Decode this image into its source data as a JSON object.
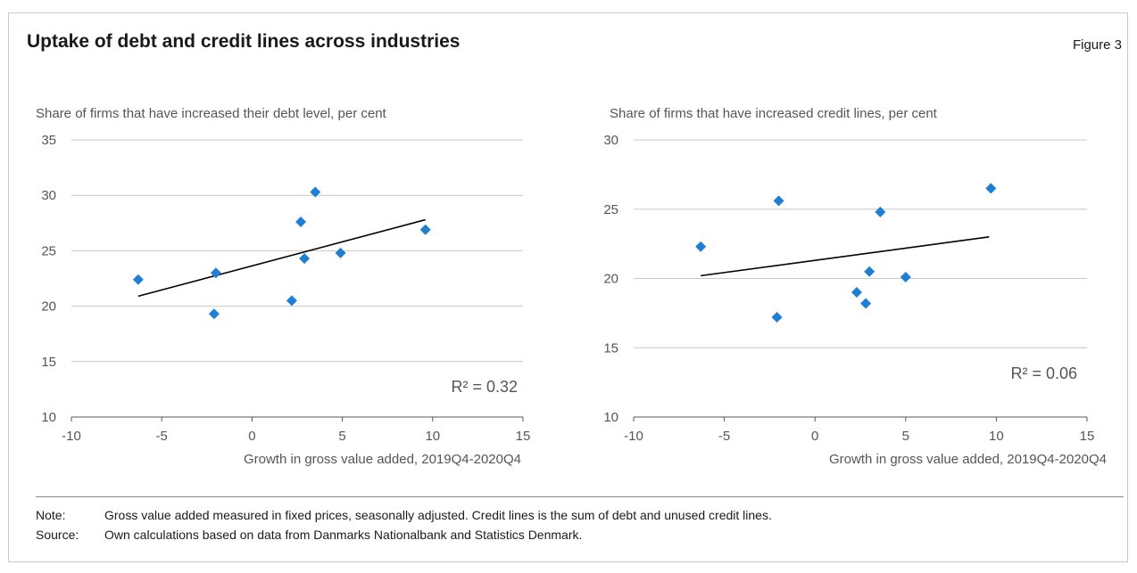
{
  "figure": {
    "title": "Uptake of debt and credit lines across industries",
    "label": "Figure 3"
  },
  "colors": {
    "marker": "#1f7fd4",
    "trendline": "#000000",
    "grid": "#c8c8c8",
    "axis": "#555555",
    "text": "#555555"
  },
  "chart_data": [
    {
      "type": "scatter",
      "title": "",
      "ylabel": "Share of firms that have increased their debt level, per cent",
      "xlabel": "Growth in gross value added, 2019Q4-2020Q4",
      "xlim": [
        -10,
        15
      ],
      "ylim": [
        10,
        35
      ],
      "xticks": [
        -10,
        -5,
        0,
        5,
        10,
        15
      ],
      "yticks": [
        10,
        15,
        20,
        25,
        30,
        35
      ],
      "grid": "horizontal",
      "marker": "diamond",
      "points": [
        {
          "x": -6.3,
          "y": 22.4
        },
        {
          "x": -2.1,
          "y": 19.3
        },
        {
          "x": -2.0,
          "y": 23.0
        },
        {
          "x": 2.2,
          "y": 20.5
        },
        {
          "x": 2.7,
          "y": 27.6
        },
        {
          "x": 2.9,
          "y": 24.3
        },
        {
          "x": 3.5,
          "y": 30.3
        },
        {
          "x": 4.9,
          "y": 24.8
        },
        {
          "x": 9.6,
          "y": 26.9
        }
      ],
      "trendline": {
        "x": [
          -6.3,
          9.6
        ],
        "y": [
          20.9,
          27.8
        ]
      },
      "annotation": "R² = 0.32"
    },
    {
      "type": "scatter",
      "title": "",
      "ylabel": "Share of firms that have increased credit lines, per cent",
      "xlabel": "Growth in gross value added, 2019Q4-2020Q4",
      "xlim": [
        -10,
        15
      ],
      "ylim": [
        10,
        30
      ],
      "xticks": [
        -10,
        -5,
        0,
        5,
        10,
        15
      ],
      "yticks": [
        10,
        15,
        20,
        25,
        30
      ],
      "grid": "horizontal",
      "marker": "diamond",
      "points": [
        {
          "x": -6.3,
          "y": 22.3
        },
        {
          "x": -2.1,
          "y": 17.2
        },
        {
          "x": -2.0,
          "y": 25.6
        },
        {
          "x": 2.3,
          "y": 19.0
        },
        {
          "x": 2.8,
          "y": 18.2
        },
        {
          "x": 3.0,
          "y": 20.5
        },
        {
          "x": 3.6,
          "y": 24.8
        },
        {
          "x": 5.0,
          "y": 20.1
        },
        {
          "x": 9.7,
          "y": 26.5
        }
      ],
      "trendline": {
        "x": [
          -6.3,
          9.6
        ],
        "y": [
          20.2,
          23.0
        ]
      },
      "annotation": "R² = 0.06"
    }
  ],
  "footnotes": {
    "note_label": "Note:",
    "note_text": "Gross value added measured in fixed prices, seasonally adjusted. Credit lines is the sum of debt and unused credit lines.",
    "source_label": "Source:",
    "source_text": "Own calculations based on data from Danmarks Nationalbank and Statistics Denmark."
  }
}
